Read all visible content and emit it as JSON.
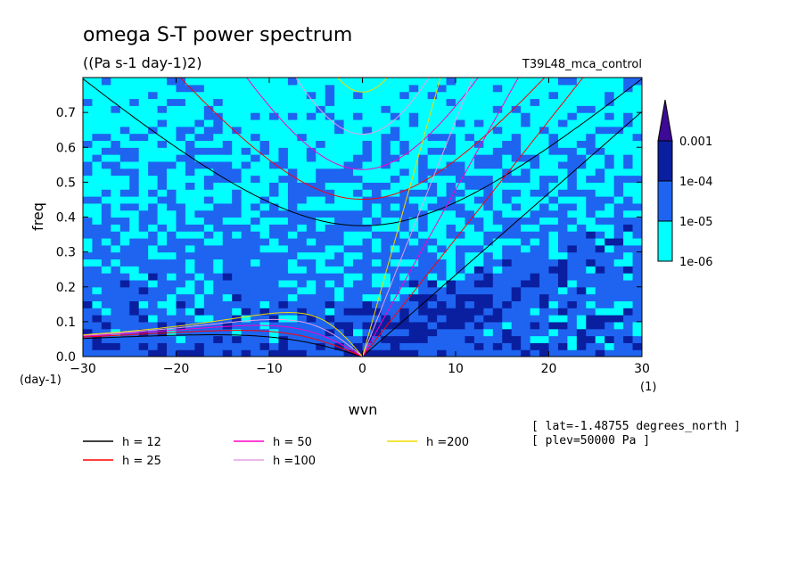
{
  "chart_data": {
    "type": "heatmap",
    "title": "omega S-T power spectrum",
    "subtitle": "((Pa s-1 day-1)2)",
    "run_label": "T39L48_mca_control",
    "xlabel": "wvn",
    "ylabel": "freq",
    "y_unit": "(day-1)",
    "x_unit": "(1)",
    "xlim": [
      -30,
      30
    ],
    "ylim": [
      0,
      0.8
    ],
    "xticks": [
      -30,
      -20,
      -10,
      0,
      10,
      20,
      30
    ],
    "yticks": [
      0.0,
      0.1,
      0.2,
      0.3,
      0.4,
      0.5,
      0.6,
      0.7
    ],
    "xtick_labels": [
      "−30",
      "−20",
      "−10",
      "0",
      "10",
      "20",
      "30"
    ],
    "ytick_labels": [
      "0.0",
      "0.1",
      "0.2",
      "0.3",
      "0.4",
      "0.5",
      "0.6",
      "0.7"
    ],
    "colorbar": {
      "levels": [
        "1e-06",
        "1e-05",
        "1e-04",
        "0.001"
      ],
      "colors": [
        "#00ffff",
        "#1e64f0",
        "#0a1ea0",
        "#3c0a96"
      ]
    },
    "dispersion_curves": [
      {
        "name": "h = 12",
        "h": 12,
        "color": "#000000"
      },
      {
        "name": "h = 25",
        "h": 25,
        "color": "#ff0000"
      },
      {
        "name": "h = 50",
        "h": 50,
        "color": "#ff00c8"
      },
      {
        "name": "h =100",
        "h": 100,
        "color": "#e6a0e6"
      },
      {
        "name": "h =200",
        "h": 200,
        "color": "#f0dc00"
      }
    ],
    "annotations": [
      "[ lat=-1.48755 degrees_north ]",
      "[ plev=50000 Pa ]"
    ]
  }
}
